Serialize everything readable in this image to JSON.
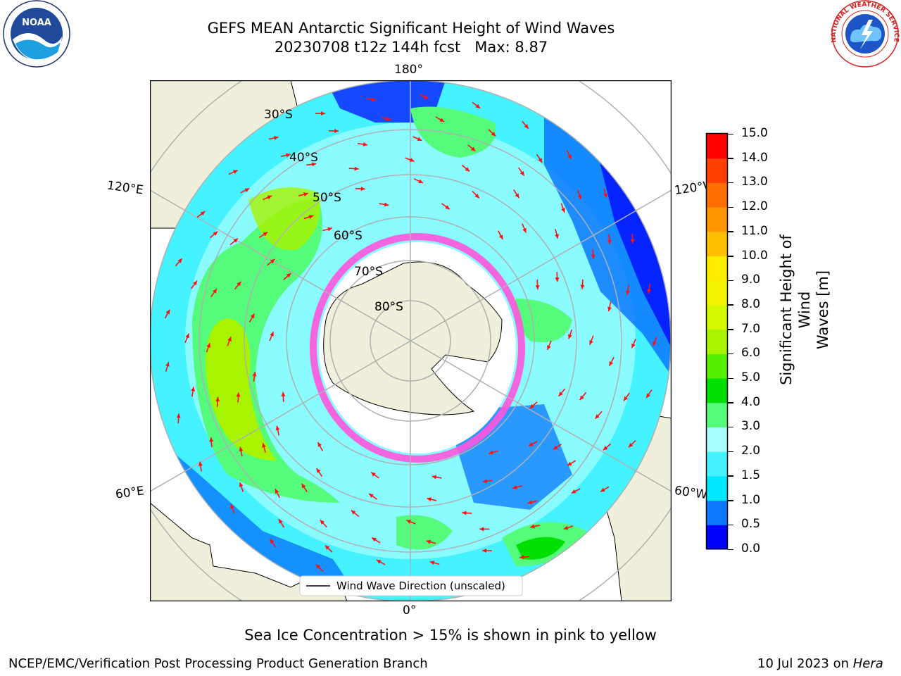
{
  "title": {
    "line1": "GEFS MEAN Antarctic Significant Height of Wind Waves",
    "line2_run": "20230708 t12z 144h fcst",
    "line2_max": "Max: 8.87"
  },
  "logos": {
    "noaa_text": "NOAA",
    "nws_text": "NATIONAL WEATHER SERVICE"
  },
  "map": {
    "lon_labels": {
      "top": "180°",
      "bottom": "0°",
      "left_upper": "120°E",
      "left_lower": "60°E",
      "right_upper": "120°W",
      "right_lower": "60°W"
    },
    "lat_labels": [
      "30°S",
      "40°S",
      "50°S",
      "60°S",
      "70°S",
      "80°S"
    ],
    "legend": "Wind Wave Direction (unscaled)"
  },
  "colorbar": {
    "label": "Significant Height of Wind Waves [m]",
    "label_line1": "Significant Height of Wind",
    "label_line2": "Waves [m]",
    "ticks": [
      "15.0",
      "14.0",
      "13.0",
      "12.0",
      "11.0",
      "10.0",
      "9.0",
      "8.0",
      "7.0",
      "6.0",
      "5.0",
      "4.0",
      "3.0",
      "2.0",
      "1.5",
      "1.0",
      "0.5",
      "0.0"
    ],
    "colors_bottom_to_top": [
      "#0000ff",
      "#0a78ff",
      "#00e8ff",
      "#44f3ff",
      "#a8fdff",
      "#55fb7a",
      "#00e000",
      "#55f000",
      "#a8f400",
      "#d4f800",
      "#f4f400",
      "#ffec00",
      "#ffbf00",
      "#ff9500",
      "#ff6e00",
      "#ff4000",
      "#ff0000"
    ]
  },
  "sea_ice_note": "Sea Ice Concentration > 15% is shown in pink to yellow",
  "footer": {
    "left": "NCEP/EMC/Verification Post Processing Product Generation Branch",
    "date": "10 Jul 2023 on ",
    "machine": "Hera"
  }
}
